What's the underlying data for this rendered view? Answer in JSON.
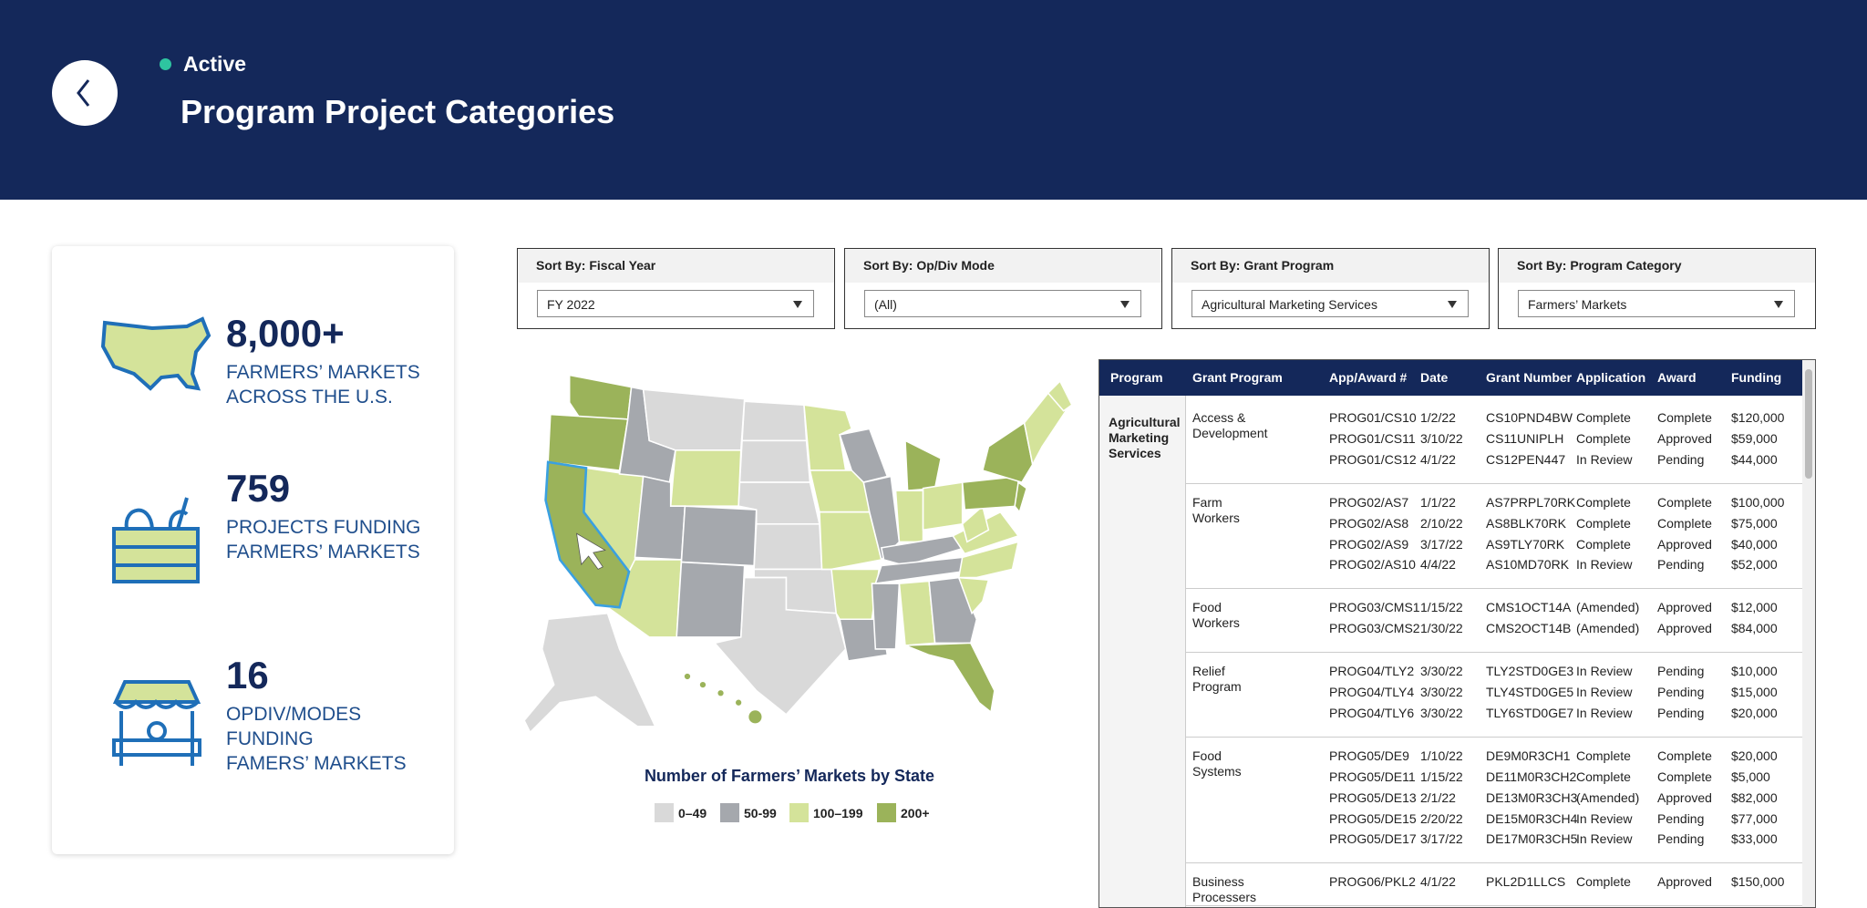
{
  "header": {
    "status": "Active",
    "title": "Program Project Categories"
  },
  "stats": [
    {
      "value": "8,000+",
      "label": [
        "FARMERS’ MARKETS",
        "ACROSS THE U.S."
      ]
    },
    {
      "value": "759",
      "label": [
        "PROJECTS FUNDING",
        "FARMERS’ MARKETS"
      ]
    },
    {
      "value": "16",
      "label": [
        "OPDIV/MODES",
        "FUNDING",
        "FAMERS’ MARKETS"
      ]
    }
  ],
  "filters": [
    {
      "label": "Sort By: Fiscal Year",
      "value": "FY 2022"
    },
    {
      "label": "Sort By: Op/Div Mode",
      "value": "(All)"
    },
    {
      "label": "Sort By: Grant Program",
      "value": "Agricultural Marketing Services"
    },
    {
      "label": "Sort By: Program Category",
      "value": "Farmers’ Markets"
    }
  ],
  "map": {
    "title": "Number of Farmers’ Markets by State",
    "legend": [
      {
        "label": "0–49",
        "color": "#d9d9d9"
      },
      {
        "label": "50-99",
        "color": "#a5a8ad"
      },
      {
        "label": "100–199",
        "color": "#d4e39a"
      },
      {
        "label": "200+",
        "color": "#9bb35a"
      }
    ]
  },
  "table": {
    "columns": [
      "Program",
      "Grant Program",
      "App/Award #",
      "Date",
      "Grant Number",
      "Application",
      "Award",
      "Funding"
    ],
    "program": "Agricultural Marketing Services",
    "groups": [
      {
        "name": "Access & Development",
        "rows": [
          [
            "PROG01/CS10",
            "1/2/22",
            "CS10PND4BW",
            "Complete",
            "Complete",
            "$120,000"
          ],
          [
            "PROG01/CS11",
            "3/10/22",
            "CS11UNIPLH",
            "Complete",
            "Approved",
            "$59,000"
          ],
          [
            "PROG01/CS12",
            "4/1/22",
            "CS12PEN447",
            "In Review",
            "Pending",
            "$44,000"
          ]
        ]
      },
      {
        "name": "Farm Workers",
        "rows": [
          [
            "PROG02/AS7",
            "1/1/22",
            "AS7PRPL70RK",
            "Complete",
            "Complete",
            "$100,000"
          ],
          [
            "PROG02/AS8",
            "2/10/22",
            "AS8BLK70RK",
            "Complete",
            "Complete",
            "$75,000"
          ],
          [
            "PROG02/AS9",
            "3/17/22",
            "AS9TLY70RK",
            "Complete",
            "Approved",
            "$40,000"
          ],
          [
            "PROG02/AS10",
            "4/4/22",
            "AS10MD70RK",
            "In Review",
            "Pending",
            "$52,000"
          ]
        ]
      },
      {
        "name": "Food Workers",
        "rows": [
          [
            "PROG03/CMS1",
            "1/15/22",
            "CMS1OCT14A",
            "(Amended)",
            "Approved",
            "$12,000"
          ],
          [
            "PROG03/CMS2",
            "1/30/22",
            "CMS2OCT14B",
            "(Amended)",
            "Approved",
            "$84,000"
          ]
        ]
      },
      {
        "name": "Relief Program",
        "rows": [
          [
            "PROG04/TLY2",
            "3/30/22",
            "TLY2STD0GE3",
            "In Review",
            "Pending",
            "$10,000"
          ],
          [
            "PROG04/TLY4",
            "3/30/22",
            "TLY4STD0GE5",
            "In Review",
            "Pending",
            "$15,000"
          ],
          [
            "PROG04/TLY6",
            "3/30/22",
            "TLY6STD0GE7",
            "In Review",
            "Pending",
            "$20,000"
          ]
        ]
      },
      {
        "name": "Food Systems",
        "rows": [
          [
            "PROG05/DE9",
            "1/10/22",
            "DE9M0R3CH1",
            "Complete",
            "Complete",
            "$20,000"
          ],
          [
            "PROG05/DE11",
            "1/15/22",
            "DE11M0R3CH2",
            "Complete",
            "Complete",
            "$5,000"
          ],
          [
            "PROG05/DE13",
            "2/1/22",
            "DE13M0R3CH3",
            "(Amended)",
            "Approved",
            "$82,000"
          ],
          [
            "PROG05/DE15",
            "2/20/22",
            "DE15M0R3CH4",
            "In Review",
            "Pending",
            "$77,000"
          ],
          [
            "PROG05/DE17",
            "3/17/22",
            "DE17M0R3CH5",
            "In Review",
            "Pending",
            "$33,000"
          ]
        ]
      },
      {
        "name": "Business Processers",
        "rows": [
          [
            "PROG06/PKL2",
            "4/1/22",
            "PKL2D1LLCS",
            "Complete",
            "Approved",
            "$150,000"
          ]
        ]
      }
    ]
  }
}
